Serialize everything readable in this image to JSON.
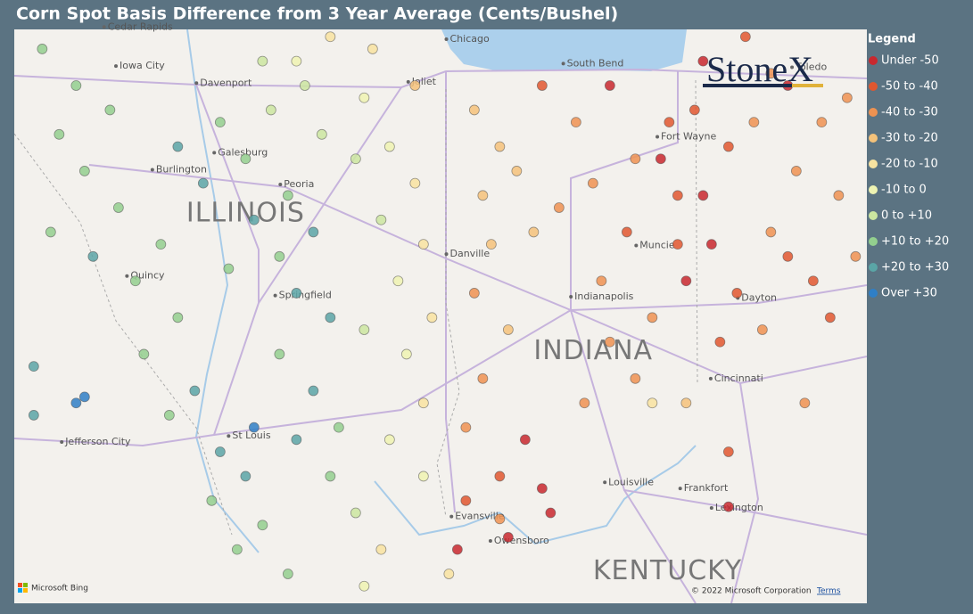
{
  "title": "Corn Spot Basis Difference from 3 Year Average (Cents/Bushel)",
  "legend": {
    "title": "Legend",
    "items": [
      {
        "label": "Under -50",
        "color": "#c8282e"
      },
      {
        "label": "-50 to -40",
        "color": "#e0572f"
      },
      {
        "label": "-40 to -30",
        "color": "#ee9251"
      },
      {
        "label": "-30 to -20",
        "color": "#f4c27a"
      },
      {
        "label": "-20 to -10",
        "color": "#f8e3a0"
      },
      {
        "label": "-10 to 0",
        "color": "#eef3b2"
      },
      {
        "label": "0 to +10",
        "color": "#cbe6a0"
      },
      {
        "label": "+10 to +20",
        "color": "#93cf8e"
      },
      {
        "label": "+20 to +30",
        "color": "#5aa5a6"
      },
      {
        "label": "Over +30",
        "color": "#2f7fc6"
      }
    ]
  },
  "logo": "StoneX",
  "places": [
    {
      "name": "Cedar Rapids",
      "lon": -91.67,
      "lat": 41.98,
      "kind": "city"
    },
    {
      "name": "Iowa City",
      "lon": -91.53,
      "lat": 41.66,
      "kind": "city"
    },
    {
      "name": "Davenport",
      "lon": -90.58,
      "lat": 41.52,
      "kind": "city"
    },
    {
      "name": "Galesburg",
      "lon": -90.37,
      "lat": 40.95,
      "kind": "city"
    },
    {
      "name": "Burlington",
      "lon": -91.1,
      "lat": 40.81,
      "kind": "city"
    },
    {
      "name": "Peoria",
      "lon": -89.59,
      "lat": 40.69,
      "kind": "city"
    },
    {
      "name": "ILLINOIS",
      "lon": -90.7,
      "lat": 40.45,
      "kind": "state"
    },
    {
      "name": "Quincy",
      "lon": -91.4,
      "lat": 39.94,
      "kind": "city"
    },
    {
      "name": "Springfield",
      "lon": -89.65,
      "lat": 39.78,
      "kind": "city"
    },
    {
      "name": "Jefferson City",
      "lon": -92.17,
      "lat": 38.58,
      "kind": "city"
    },
    {
      "name": "St Louis",
      "lon": -90.2,
      "lat": 38.63,
      "kind": "city"
    },
    {
      "name": "Chicago",
      "lon": -87.63,
      "lat": 41.88,
      "kind": "city"
    },
    {
      "name": "Joliet",
      "lon": -88.08,
      "lat": 41.53,
      "kind": "city"
    },
    {
      "name": "South Bend",
      "lon": -86.25,
      "lat": 41.68,
      "kind": "city"
    },
    {
      "name": "Danville",
      "lon": -87.63,
      "lat": 40.12,
      "kind": "city"
    },
    {
      "name": "Muncie",
      "lon": -85.39,
      "lat": 40.19,
      "kind": "city"
    },
    {
      "name": "Indianapolis",
      "lon": -86.16,
      "lat": 39.77,
      "kind": "city"
    },
    {
      "name": "INDIANA",
      "lon": -86.6,
      "lat": 39.32,
      "kind": "state"
    },
    {
      "name": "Fort Wayne",
      "lon": -85.14,
      "lat": 41.08,
      "kind": "city"
    },
    {
      "name": "Toledo",
      "lon": -83.55,
      "lat": 41.65,
      "kind": "city"
    },
    {
      "name": "Dayton",
      "lon": -84.19,
      "lat": 39.76,
      "kind": "city"
    },
    {
      "name": "Cincinnati",
      "lon": -84.51,
      "lat": 39.1,
      "kind": "city"
    },
    {
      "name": "Louisville",
      "lon": -85.76,
      "lat": 38.25,
      "kind": "city"
    },
    {
      "name": "Frankfort",
      "lon": -84.87,
      "lat": 38.2,
      "kind": "city"
    },
    {
      "name": "Lexington",
      "lon": -84.5,
      "lat": 38.04,
      "kind": "city"
    },
    {
      "name": "Evansville",
      "lon": -87.57,
      "lat": 37.97,
      "kind": "city"
    },
    {
      "name": "Owensboro",
      "lon": -87.11,
      "lat": 37.77,
      "kind": "city"
    },
    {
      "name": "KENTUCKY",
      "lon": -85.9,
      "lat": 37.52,
      "kind": "state"
    }
  ],
  "points": [
    [
      -92.4,
      41.8,
      7
    ],
    [
      -92.0,
      41.5,
      7
    ],
    [
      -91.6,
      41.3,
      7
    ],
    [
      -92.2,
      41.1,
      7
    ],
    [
      -91.9,
      40.8,
      7
    ],
    [
      -91.5,
      40.5,
      7
    ],
    [
      -92.3,
      40.3,
      7
    ],
    [
      -91.8,
      40.1,
      8
    ],
    [
      -91.3,
      39.9,
      7
    ],
    [
      -91.0,
      40.2,
      7
    ],
    [
      -90.8,
      39.6,
      7
    ],
    [
      -91.2,
      39.3,
      7
    ],
    [
      -90.6,
      39.0,
      8
    ],
    [
      -92.5,
      39.2,
      8
    ],
    [
      -92.0,
      38.9,
      9
    ],
    [
      -91.9,
      38.95,
      9
    ],
    [
      -92.5,
      38.8,
      8
    ],
    [
      -90.9,
      38.8,
      7
    ],
    [
      -90.3,
      38.5,
      8
    ],
    [
      -90.0,
      38.3,
      8
    ],
    [
      -90.4,
      38.1,
      7
    ],
    [
      -89.8,
      37.9,
      7
    ],
    [
      -90.1,
      37.7,
      7
    ],
    [
      -89.5,
      37.5,
      7
    ],
    [
      -89.9,
      38.7,
      9
    ],
    [
      -90.3,
      41.2,
      7
    ],
    [
      -90.8,
      41.0,
      8
    ],
    [
      -90.5,
      40.7,
      8
    ],
    [
      -90.0,
      40.9,
      7
    ],
    [
      -89.7,
      41.3,
      6
    ],
    [
      -89.4,
      41.7,
      5
    ],
    [
      -89.0,
      41.9,
      4
    ],
    [
      -89.3,
      41.5,
      6
    ],
    [
      -89.8,
      41.7,
      6
    ],
    [
      -89.1,
      41.1,
      6
    ],
    [
      -89.5,
      40.6,
      7
    ],
    [
      -89.2,
      40.3,
      8
    ],
    [
      -89.6,
      40.1,
      7
    ],
    [
      -89.9,
      40.4,
      8
    ],
    [
      -90.2,
      40.0,
      7
    ],
    [
      -89.4,
      39.8,
      8
    ],
    [
      -89.0,
      39.6,
      8
    ],
    [
      -89.6,
      39.3,
      7
    ],
    [
      -89.2,
      39.0,
      8
    ],
    [
      -88.9,
      38.7,
      7
    ],
    [
      -89.4,
      38.6,
      8
    ],
    [
      -89.0,
      38.3,
      7
    ],
    [
      -88.7,
      38.0,
      6
    ],
    [
      -88.4,
      37.7,
      4
    ],
    [
      -88.6,
      37.4,
      5
    ],
    [
      -88.6,
      41.4,
      5
    ],
    [
      -88.3,
      41.0,
      5
    ],
    [
      -88.0,
      40.7,
      4
    ],
    [
      -88.4,
      40.4,
      6
    ],
    [
      -87.9,
      40.2,
      4
    ],
    [
      -88.2,
      39.9,
      5
    ],
    [
      -87.8,
      39.6,
      4
    ],
    [
      -88.1,
      39.3,
      5
    ],
    [
      -87.9,
      38.9,
      4
    ],
    [
      -88.3,
      38.6,
      5
    ],
    [
      -87.9,
      38.3,
      5
    ],
    [
      -88.5,
      41.8,
      4
    ],
    [
      -88.0,
      41.5,
      3
    ],
    [
      -88.7,
      40.9,
      6
    ],
    [
      -88.6,
      39.5,
      6
    ],
    [
      -87.3,
      41.3,
      3
    ],
    [
      -87.0,
      41.0,
      3
    ],
    [
      -87.2,
      40.6,
      3
    ],
    [
      -86.8,
      40.8,
      3
    ],
    [
      -87.1,
      40.2,
      3
    ],
    [
      -86.6,
      40.3,
      3
    ],
    [
      -87.3,
      39.8,
      2
    ],
    [
      -86.9,
      39.5,
      3
    ],
    [
      -87.2,
      39.1,
      2
    ],
    [
      -87.4,
      38.7,
      2
    ],
    [
      -87.0,
      38.3,
      1
    ],
    [
      -87.4,
      38.1,
      1
    ],
    [
      -87.0,
      37.95,
      2
    ],
    [
      -86.7,
      38.6,
      0
    ],
    [
      -86.5,
      38.2,
      0
    ],
    [
      -86.9,
      37.8,
      0
    ],
    [
      -87.5,
      37.7,
      0
    ],
    [
      -87.6,
      37.5,
      4
    ],
    [
      -86.4,
      38.0,
      0
    ],
    [
      -86.0,
      38.9,
      2
    ],
    [
      -86.5,
      41.5,
      1
    ],
    [
      -86.1,
      41.2,
      2
    ],
    [
      -85.7,
      41.5,
      0
    ],
    [
      -85.4,
      40.9,
      2
    ],
    [
      -85.9,
      40.7,
      2
    ],
    [
      -86.3,
      40.5,
      2
    ],
    [
      -85.5,
      40.3,
      1
    ],
    [
      -85.8,
      39.9,
      2
    ],
    [
      -85.2,
      39.6,
      2
    ],
    [
      -85.7,
      39.4,
      2
    ],
    [
      -85.4,
      39.1,
      2
    ],
    [
      -84.9,
      40.6,
      1
    ],
    [
      -84.9,
      40.2,
      1
    ],
    [
      -85.1,
      40.9,
      0
    ],
    [
      -85.0,
      41.2,
      1
    ],
    [
      -84.6,
      41.7,
      0
    ],
    [
      -84.7,
      41.3,
      1
    ],
    [
      -84.3,
      41.0,
      1
    ],
    [
      -84.6,
      40.6,
      0
    ],
    [
      -84.5,
      40.2,
      0
    ],
    [
      -84.8,
      39.9,
      0
    ],
    [
      -84.2,
      39.8,
      1
    ],
    [
      -83.8,
      40.3,
      2
    ],
    [
      -83.5,
      40.8,
      2
    ],
    [
      -84.0,
      41.2,
      2
    ],
    [
      -83.6,
      41.5,
      0
    ],
    [
      -83.2,
      41.2,
      2
    ],
    [
      -83.0,
      40.6,
      2
    ],
    [
      -83.3,
      39.9,
      1
    ],
    [
      -83.9,
      39.5,
      2
    ],
    [
      -84.4,
      39.4,
      1
    ],
    [
      -83.1,
      39.6,
      1
    ],
    [
      -82.8,
      40.1,
      2
    ],
    [
      -83.8,
      41.6,
      2
    ],
    [
      -84.1,
      41.9,
      1
    ],
    [
      -83.4,
      38.9,
      2
    ],
    [
      -84.3,
      38.5,
      1
    ],
    [
      -84.3,
      38.05,
      0
    ],
    [
      -84.8,
      38.9,
      3
    ],
    [
      -85.2,
      38.9,
      4
    ],
    [
      -82.9,
      41.4,
      2
    ],
    [
      -83.6,
      40.1,
      1
    ]
  ],
  "attribution": {
    "provider": "Microsoft Bing",
    "copyright": "© 2022 Microsoft Corporation",
    "terms": "Terms"
  }
}
